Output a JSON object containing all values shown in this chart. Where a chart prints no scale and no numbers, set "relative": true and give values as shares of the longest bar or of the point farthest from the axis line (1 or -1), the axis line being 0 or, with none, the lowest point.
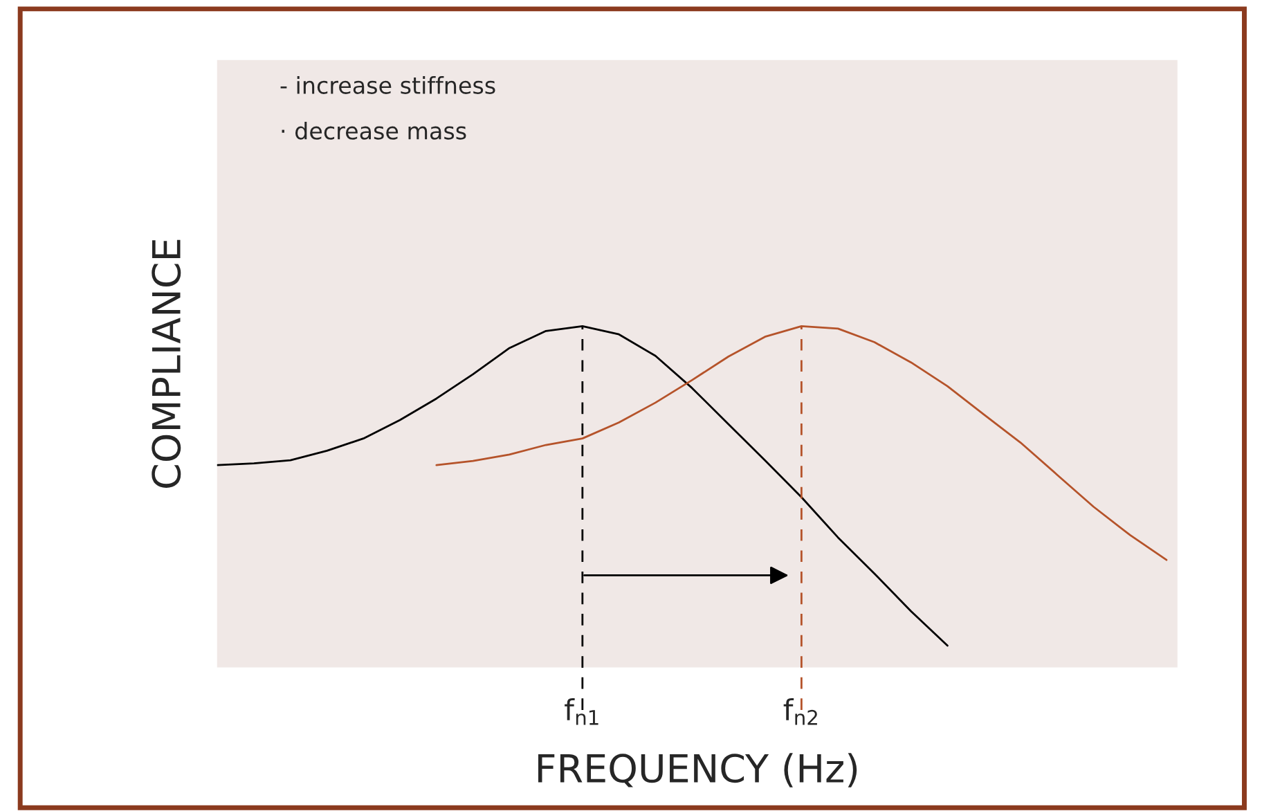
{
  "chart_data": {
    "type": "line",
    "relative": true,
    "xlabel": "FREQUENCY (Hz)",
    "ylabel": "COMPLIANCE",
    "categories": [
      null,
      null,
      null,
      null,
      null,
      null,
      null,
      null,
      null,
      null,
      "f$_{n1}$",
      null,
      null,
      null,
      null,
      null,
      "f$_{n2}$",
      null,
      null,
      null,
      null,
      null,
      null,
      null,
      null,
      null,
      null
    ],
    "series": [
      {
        "color": "#000000",
        "values": [
          0.593,
          0.598,
          0.607,
          0.635,
          0.671,
          0.725,
          0.788,
          0.859,
          0.936,
          0.986,
          1.0,
          0.976,
          0.913,
          0.819,
          0.713,
          0.607,
          0.499,
          0.381,
          0.275,
          0.165,
          0.064,
          null,
          null,
          null,
          null,
          null,
          null
        ]
      },
      {
        "color": "#b5532a",
        "values": [
          null,
          null,
          null,
          null,
          null,
          null,
          0.593,
          0.605,
          0.624,
          0.652,
          0.671,
          0.718,
          0.776,
          0.842,
          0.911,
          0.969,
          1.0,
          0.993,
          0.953,
          0.894,
          0.824,
          0.741,
          0.659,
          0.565,
          0.471,
          0.388,
          0.315
        ]
      }
    ],
    "ref_lines": [
      {
        "axis": "x",
        "value": "f$_{n1}$",
        "color": "#000000",
        "line_style": "dashed"
      },
      {
        "axis": "x",
        "value": "f$_{n2}$",
        "color": "#b5532a",
        "line_style": "dashed"
      }
    ],
    "annotations": [
      "- increase stiffness",
      "· decrease mass"
    ],
    "marker": "none",
    "line_style": "solid"
  }
}
